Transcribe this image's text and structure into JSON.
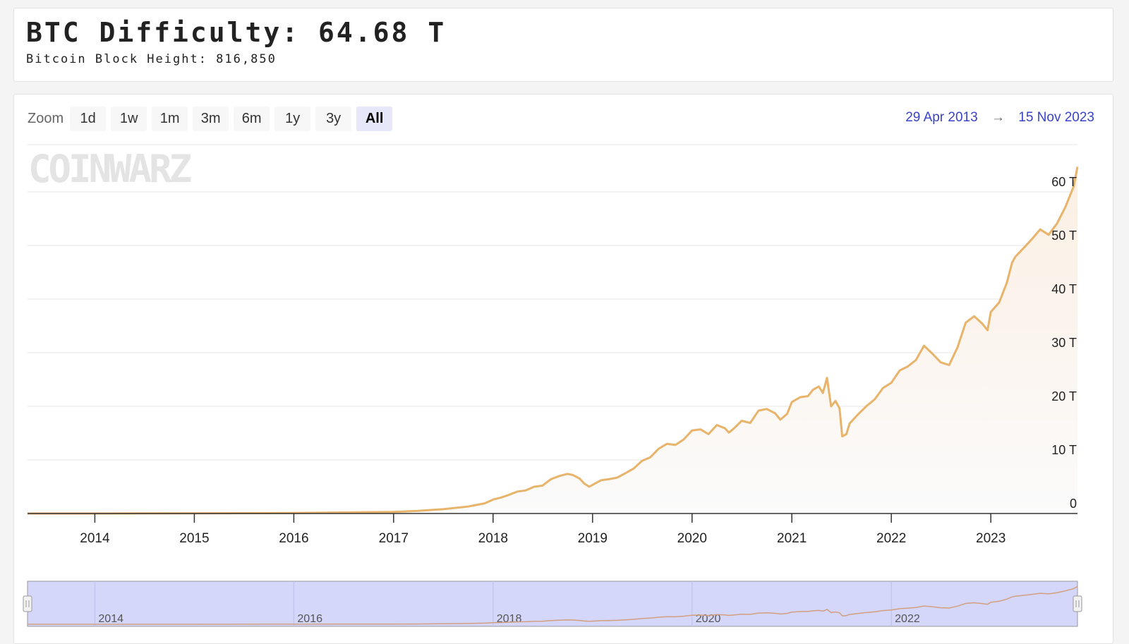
{
  "header": {
    "title": "BTC Difficulty: 64.68 T",
    "subtitle": "Bitcoin Block Height: 816,850"
  },
  "zoom": {
    "label": "Zoom",
    "buttons": [
      "1d",
      "1w",
      "1m",
      "3m",
      "6m",
      "1y",
      "3y",
      "All"
    ],
    "active": "All"
  },
  "range": {
    "from": "29 Apr 2013",
    "arrow": "→",
    "to": "15 Nov 2023"
  },
  "watermark": "COINWARZ",
  "colors": {
    "line": "#e8b36a",
    "area": "#fbf4ec",
    "navigator_mask": "#d4d6fa",
    "range_text": "#3a43c8"
  },
  "chart_data": {
    "type": "area",
    "title": "",
    "xlabel": "",
    "ylabel": "",
    "y_unit": "T",
    "ylim": [
      0,
      70
    ],
    "xlim": [
      "2013-04-29",
      "2023-11-15"
    ],
    "y_ticks": [
      "0",
      "10 T",
      "20 T",
      "30 T",
      "40 T",
      "50 T",
      "60 T"
    ],
    "x_ticks": [
      "2014",
      "2015",
      "2016",
      "2017",
      "2018",
      "2019",
      "2020",
      "2021",
      "2022",
      "2023"
    ],
    "navigator_ticks": [
      "2014",
      "2016",
      "2018",
      "2020",
      "2022"
    ],
    "grid": true,
    "legend": "none",
    "series": [
      {
        "x": [
          "2013-04-29",
          "2014-01-01",
          "2015-01-01",
          "2016-01-01",
          "2016-07-01",
          "2017-01-01",
          "2017-04-01",
          "2017-07-01",
          "2017-10-01",
          "2017-12-01",
          "2018-01-01",
          "2018-02-01",
          "2018-03-01",
          "2018-04-01",
          "2018-05-01",
          "2018-06-01",
          "2018-07-01",
          "2018-08-01",
          "2018-09-01",
          "2018-10-01",
          "2018-10-20",
          "2018-11-15",
          "2018-12-01",
          "2018-12-20",
          "2019-01-10",
          "2019-02-01",
          "2019-03-01",
          "2019-04-01",
          "2019-05-01",
          "2019-06-01",
          "2019-07-01",
          "2019-08-01",
          "2019-09-01",
          "2019-10-01",
          "2019-11-01",
          "2019-12-01",
          "2020-01-01",
          "2020-02-01",
          "2020-03-01",
          "2020-04-01",
          "2020-05-01",
          "2020-05-15",
          "2020-06-01",
          "2020-07-01",
          "2020-08-01",
          "2020-09-01",
          "2020-10-01",
          "2020-11-01",
          "2020-11-20",
          "2020-12-15",
          "2021-01-01",
          "2021-02-01",
          "2021-03-01",
          "2021-03-20",
          "2021-04-10",
          "2021-04-25",
          "2021-05-10",
          "2021-05-25",
          "2021-06-10",
          "2021-06-25",
          "2021-07-05",
          "2021-07-20",
          "2021-08-01",
          "2021-09-01",
          "2021-10-01",
          "2021-11-01",
          "2021-12-01",
          "2022-01-01",
          "2022-02-01",
          "2022-03-01",
          "2022-04-01",
          "2022-05-01",
          "2022-06-01",
          "2022-07-01",
          "2022-08-01",
          "2022-09-01",
          "2022-10-01",
          "2022-11-01",
          "2022-12-01",
          "2022-12-20",
          "2023-01-01",
          "2023-02-01",
          "2023-03-01",
          "2023-03-20",
          "2023-04-01",
          "2023-05-01",
          "2023-06-01",
          "2023-07-01",
          "2023-08-01",
          "2023-09-01",
          "2023-10-01",
          "2023-11-01",
          "2023-11-15"
        ],
        "y": [
          1e-05,
          0.0015,
          0.04,
          0.1,
          0.2,
          0.3,
          0.5,
          0.8,
          1.3,
          1.9,
          2.6,
          3.0,
          3.5,
          4.1,
          4.3,
          5.0,
          5.2,
          6.4,
          7.0,
          7.4,
          7.2,
          6.5,
          5.6,
          5.0,
          5.6,
          6.2,
          6.4,
          6.7,
          7.5,
          8.4,
          9.8,
          10.5,
          12.1,
          13.0,
          12.8,
          13.8,
          15.5,
          15.7,
          14.8,
          16.5,
          15.9,
          15.1,
          15.8,
          17.3,
          16.9,
          19.2,
          19.5,
          18.7,
          17.5,
          18.6,
          20.8,
          21.7,
          21.9,
          23.1,
          23.7,
          22.5,
          25.3,
          20.0,
          21.0,
          19.6,
          14.4,
          14.8,
          16.8,
          18.5,
          20.0,
          21.3,
          23.4,
          24.4,
          26.7,
          27.4,
          28.6,
          31.3,
          29.8,
          28.2,
          27.7,
          31.0,
          35.6,
          36.8,
          35.4,
          34.2,
          37.6,
          39.4,
          43.1,
          46.8,
          47.9,
          49.5,
          51.2,
          53.0,
          52.0,
          54.1,
          57.1,
          61.0,
          64.68
        ]
      }
    ]
  }
}
